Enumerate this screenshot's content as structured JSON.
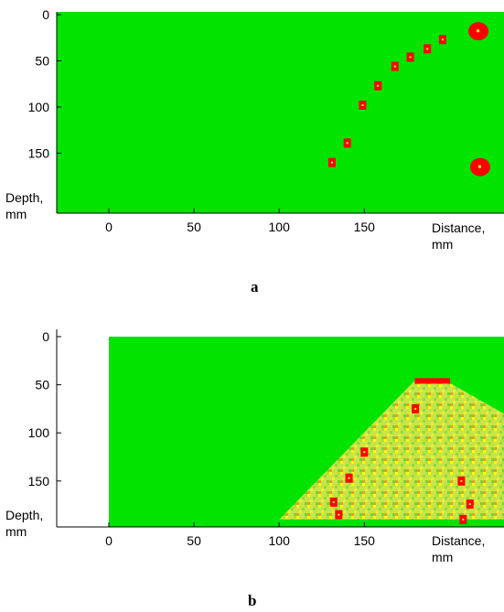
{
  "chart_data": [
    {
      "type": "heatmap",
      "panel_label": "a",
      "xlabel": "Distance,\nmm",
      "ylabel": "Depth,\nmm",
      "xlim": [
        -30,
        195
      ],
      "ylim": [
        175,
        -7
      ],
      "x_ticks": [
        0,
        50,
        100,
        150
      ],
      "y_ticks": [
        0,
        50,
        100,
        150
      ],
      "background_color": "#00e400",
      "defect_color": "#ff0000",
      "highlight_color": "#ffff00",
      "defects": [
        {
          "x": 131,
          "y": 160
        },
        {
          "x": 140,
          "y": 139
        },
        {
          "x": 149,
          "y": 98
        },
        {
          "x": 158,
          "y": 77
        },
        {
          "x": 168,
          "y": 56
        },
        {
          "x": 177,
          "y": 46
        },
        {
          "x": 187,
          "y": 37
        },
        {
          "x": 196,
          "y": 27
        },
        {
          "x": 217,
          "y": 18
        },
        {
          "x": 218,
          "y": 165
        }
      ]
    },
    {
      "type": "heatmap",
      "panel_label": "b",
      "xlabel": "Distance,\nmm",
      "ylabel": "Depth,\nmm",
      "xlim": [
        -30,
        195
      ],
      "ylim": [
        190,
        -5
      ],
      "x_ticks": [
        0,
        50,
        100,
        150
      ],
      "y_ticks": [
        0,
        50,
        100,
        150
      ],
      "background_color": "#00e400",
      "noise_colors": [
        "#9ce040",
        "#d8e840",
        "#ffff00",
        "#e0a020"
      ],
      "defect_color": "#ff0000",
      "scan_region": [
        [
          100,
          190
        ],
        [
          180,
          45
        ],
        [
          197,
          45
        ],
        [
          240,
          80
        ],
        [
          240,
          190
        ]
      ],
      "defects": [
        {
          "x": 132,
          "y": 172
        },
        {
          "x": 135,
          "y": 185
        },
        {
          "x": 141,
          "y": 147
        },
        {
          "x": 150,
          "y": 120
        },
        {
          "x": 180,
          "y": 75
        },
        {
          "x": 185,
          "y": 46
        },
        {
          "x": 195,
          "y": 46
        },
        {
          "x": 207,
          "y": 150
        },
        {
          "x": 212,
          "y": 174
        },
        {
          "x": 208,
          "y": 190
        }
      ]
    }
  ]
}
